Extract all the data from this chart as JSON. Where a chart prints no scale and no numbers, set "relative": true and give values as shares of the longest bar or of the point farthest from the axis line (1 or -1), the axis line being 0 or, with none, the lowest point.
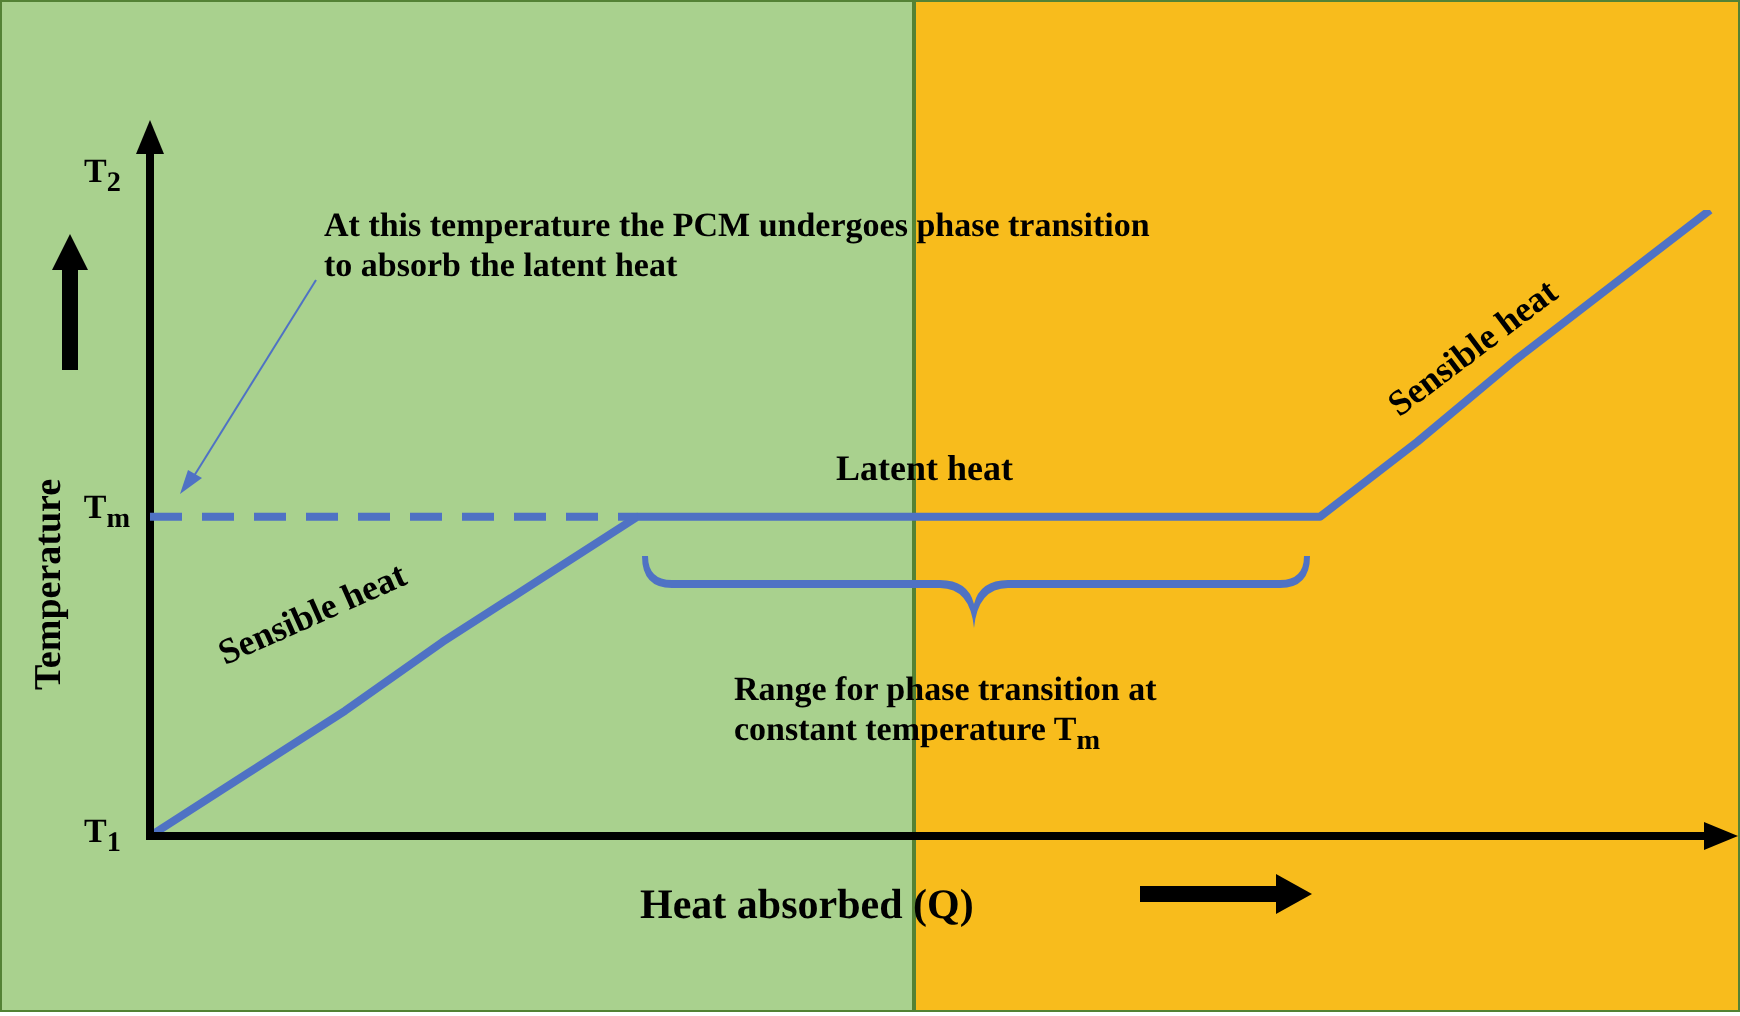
{
  "chart_data": {
    "type": "line",
    "relative": true,
    "categories": [
      null,
      null,
      null,
      null,
      null,
      null,
      null,
      null,
      null,
      null,
      null,
      null,
      null,
      null,
      null,
      null,
      null
    ],
    "series": [
      {
        "color": "#4f72c4",
        "values": [
          0,
          0.1,
          0.2,
          0.31,
          0.41,
          0.51,
          0.51,
          0.51,
          0.51,
          0.51,
          0.51,
          0.51,
          0.51,
          0.63,
          0.76,
          0.88,
          1
        ]
      }
    ],
    "xlabel": "Heat absorbed (Q)",
    "ylabel": "Temperature",
    "ref_lines": [
      {
        "axis": "y",
        "value": 0.51,
        "label": "T$_{m}$",
        "line_style": "dashed",
        "color": "#4f72c4"
      }
    ],
    "annotations": [
      "At this temperature the PCM undergoes phase transition to absorb the latent heat",
      "Latent heat",
      "Sensible heat",
      "Sensible heat",
      "Range for phase transition at constant temperature T$_{m}$",
      "T$_{2}$",
      "T$_{1}$"
    ]
  }
}
